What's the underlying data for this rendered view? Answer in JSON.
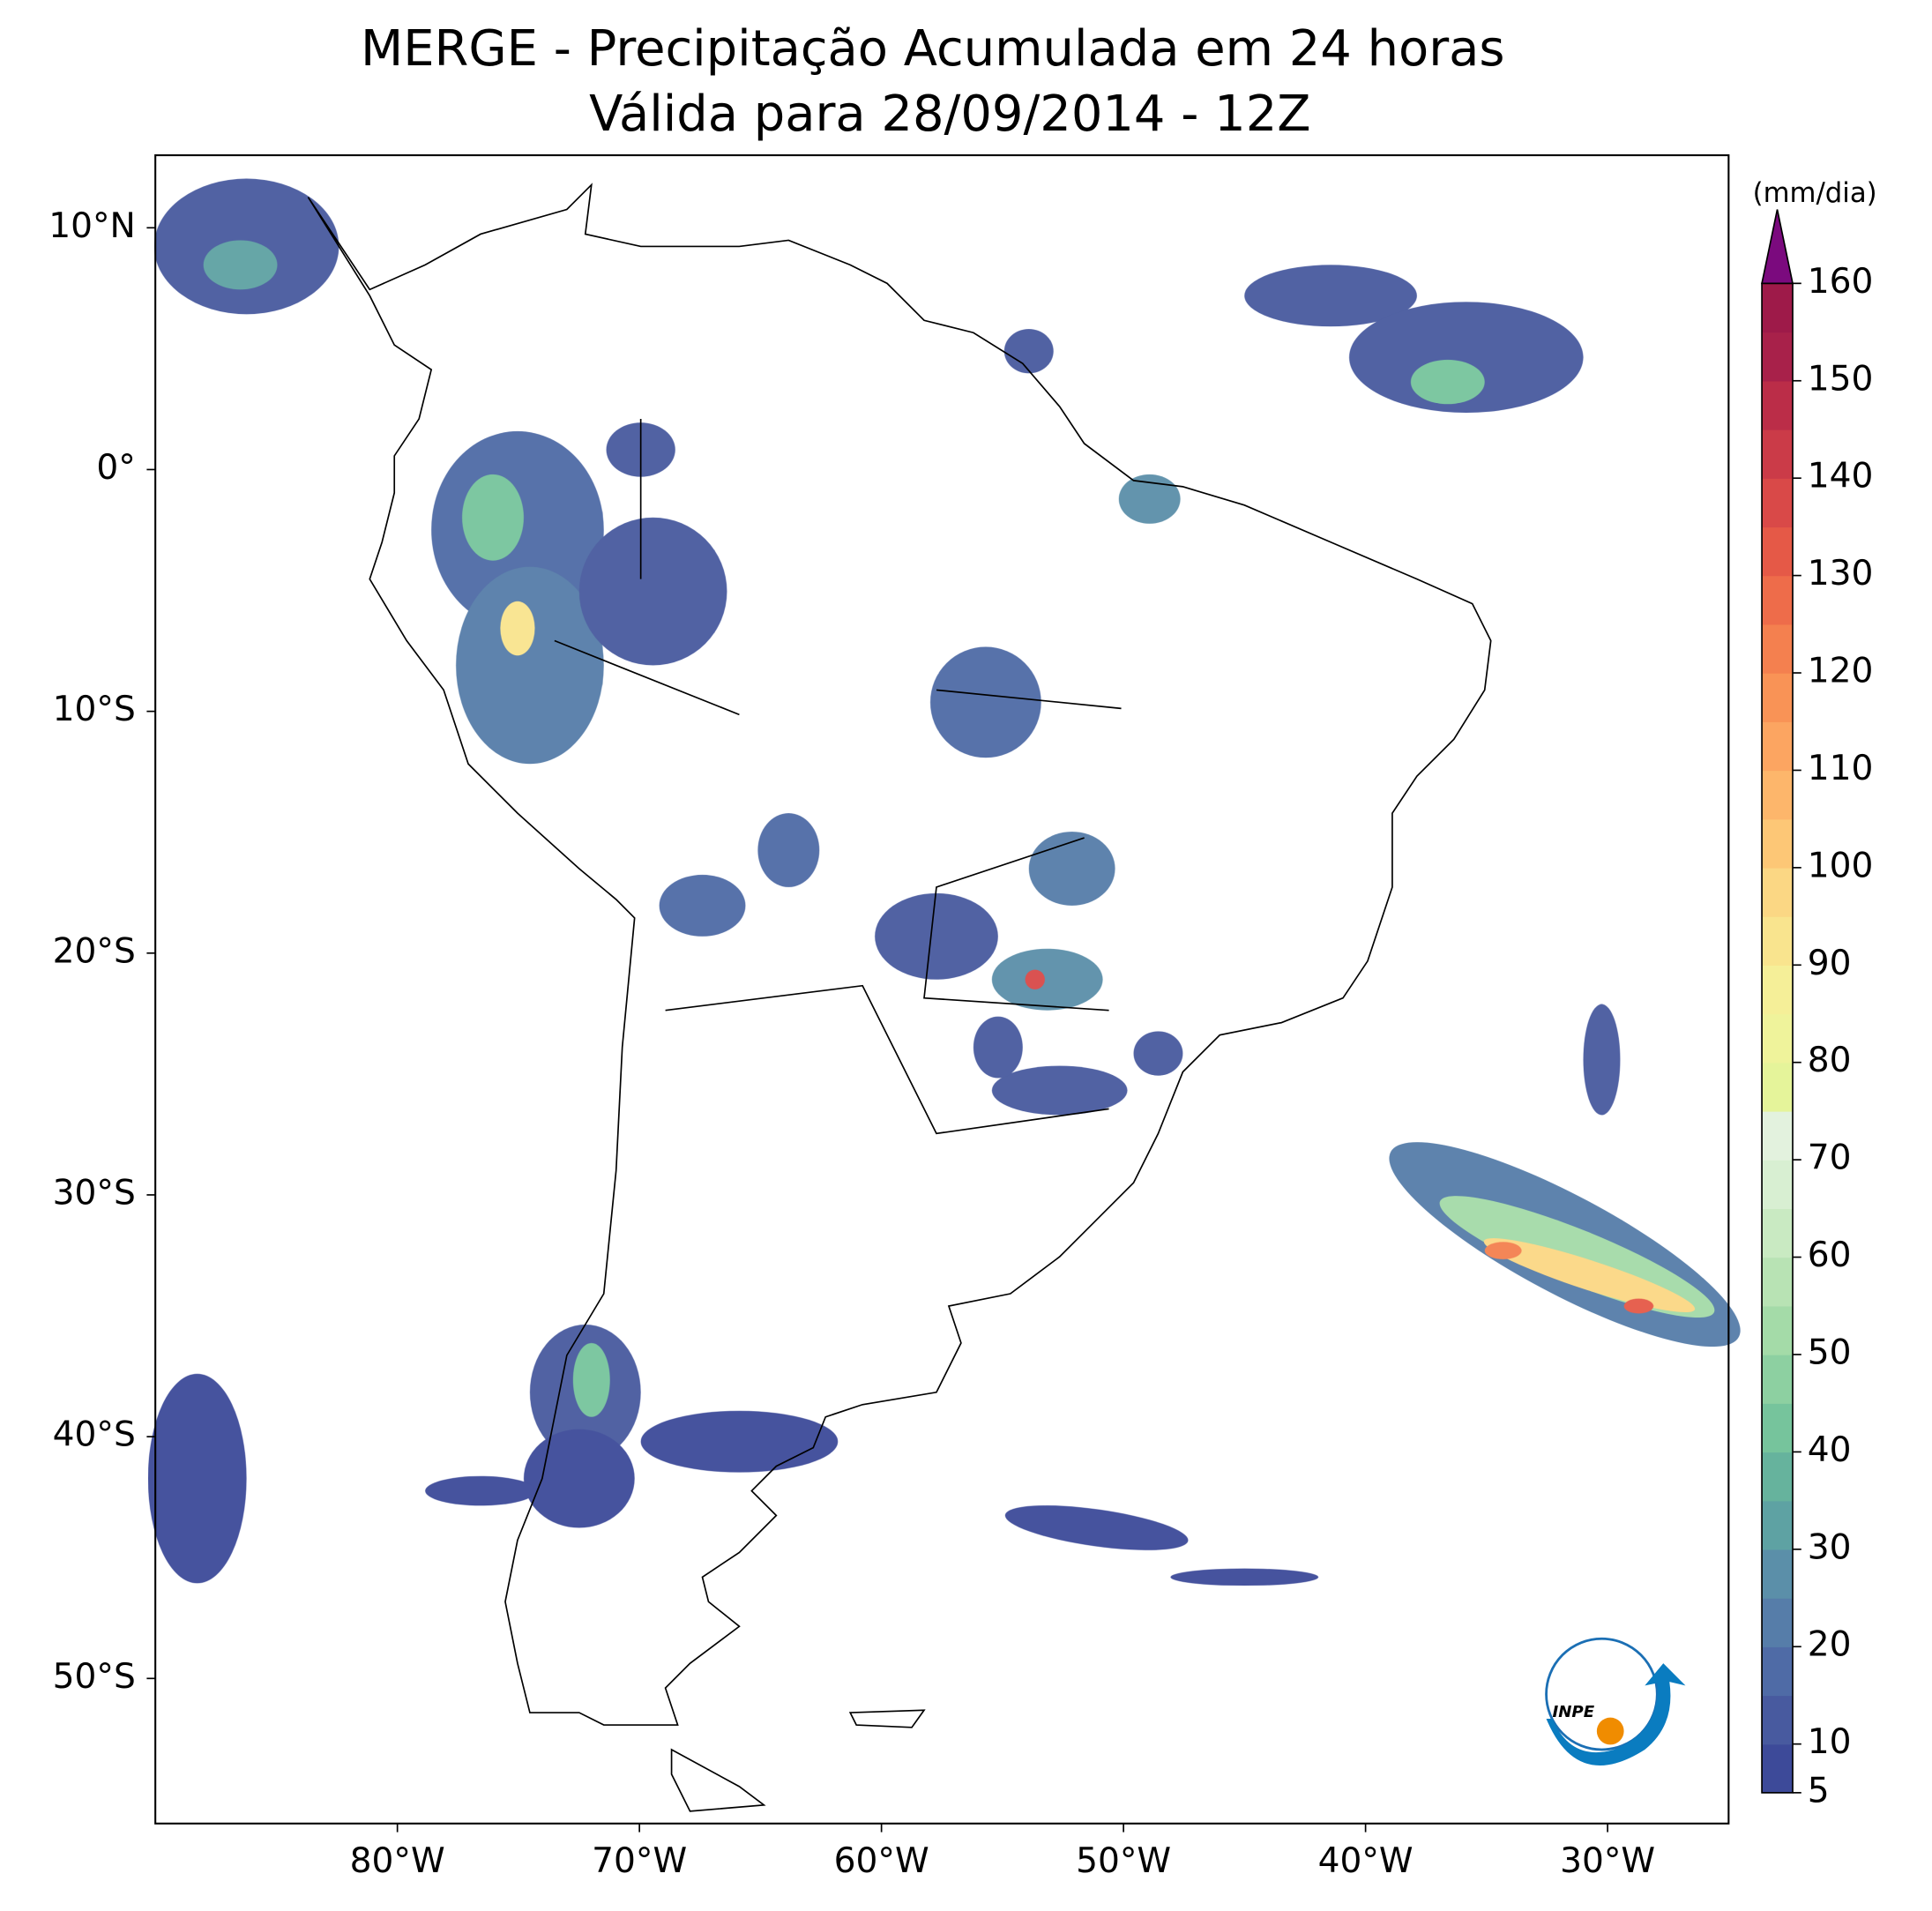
{
  "chart_data": {
    "type": "map",
    "title": "MERGE - Precipitação Acumulada em 24 horas",
    "subtitle": "Válida para 28/09/2014 - 12Z",
    "xlim": [
      -90,
      -25
    ],
    "ylim": [
      -56,
      13
    ],
    "xticks": [
      {
        "value": -80,
        "label": "80°W"
      },
      {
        "value": -70,
        "label": "70°W"
      },
      {
        "value": -60,
        "label": "60°W"
      },
      {
        "value": -50,
        "label": "50°W"
      },
      {
        "value": -40,
        "label": "40°W"
      },
      {
        "value": -30,
        "label": "30°W"
      }
    ],
    "yticks": [
      {
        "value": 10,
        "label": "10°N"
      },
      {
        "value": 0,
        "label": "0°"
      },
      {
        "value": -10,
        "label": "10°S"
      },
      {
        "value": -20,
        "label": "20°S"
      },
      {
        "value": -30,
        "label": "30°S"
      },
      {
        "value": -40,
        "label": "40°S"
      },
      {
        "value": -50,
        "label": "50°S"
      }
    ],
    "colorbar": {
      "label": "(mm/dia)",
      "levels": [
        5,
        10,
        15,
        20,
        25,
        30,
        35,
        40,
        45,
        50,
        55,
        60,
        65,
        70,
        75,
        80,
        85,
        90,
        95,
        100,
        105,
        110,
        115,
        120,
        125,
        130,
        135,
        140,
        145,
        150,
        155,
        160
      ],
      "colors": [
        "#3d4a99",
        "#485a9f",
        "#4f6ba6",
        "#567da9",
        "#5b8fa9",
        "#5ea2a3",
        "#66b39d",
        "#76c49c",
        "#8dd0a1",
        "#a4dba8",
        "#b8e3b4",
        "#c9eac2",
        "#d8efd2",
        "#e3f2de",
        "#e5f49a",
        "#eff39b",
        "#f5ef98",
        "#f9e48e",
        "#fbd784",
        "#fdc776",
        "#fdb66b",
        "#fca561",
        "#f99356",
        "#f4804f",
        "#ee6c4a",
        "#e55947",
        "#d94948",
        "#cb3b48",
        "#bb2d48",
        "#a8214a",
        "#9e1a49"
      ],
      "extend_color": "#7b0a7e",
      "ticks": [
        5,
        10,
        20,
        30,
        40,
        50,
        60,
        70,
        80,
        90,
        100,
        110,
        120,
        130,
        140,
        150,
        160
      ]
    }
  },
  "logo": {
    "text": "INPE"
  }
}
